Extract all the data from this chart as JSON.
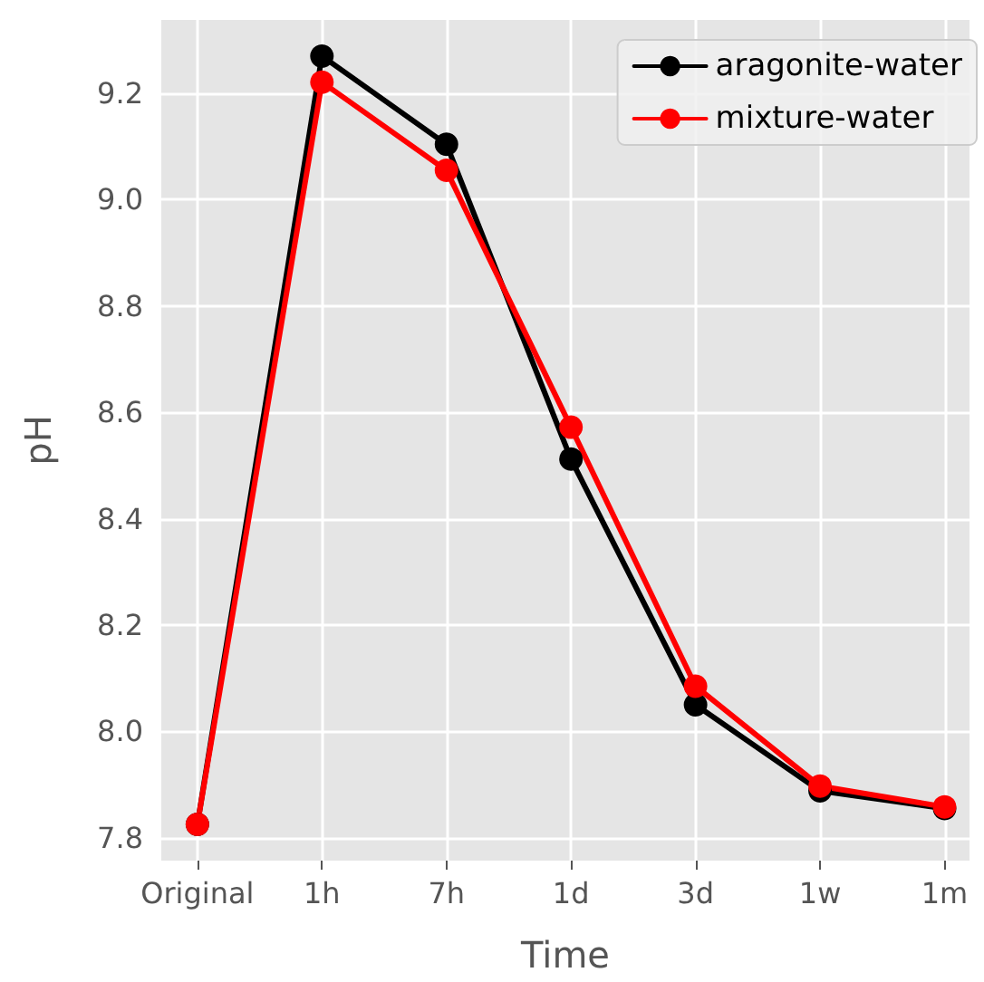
{
  "chart_data": {
    "type": "line",
    "xlabel": "Time",
    "ylabel": "pH",
    "categories": [
      "Original",
      "1h",
      "7h",
      "1d",
      "3d",
      "1w",
      "1m"
    ],
    "series": [
      {
        "name": "aragonite-water",
        "color": "#000000",
        "values": [
          7.825,
          9.27,
          9.104,
          8.512,
          8.05,
          7.888,
          7.855
        ]
      },
      {
        "name": "mixture-water",
        "color": "#ff0000",
        "values": [
          7.825,
          9.221,
          9.055,
          8.572,
          8.085,
          7.897,
          7.858
        ]
      }
    ],
    "ylim": [
      7.757,
      9.338
    ],
    "yticks": [
      7.8,
      {
        "value": 8,
        "label": "8.0"
      },
      8.2,
      8.4,
      8.6,
      8.8,
      {
        "value": 9,
        "label": "9.0"
      },
      9.2
    ],
    "grid": true,
    "legend": "top right",
    "marker": "circle",
    "line_style": "solid"
  }
}
